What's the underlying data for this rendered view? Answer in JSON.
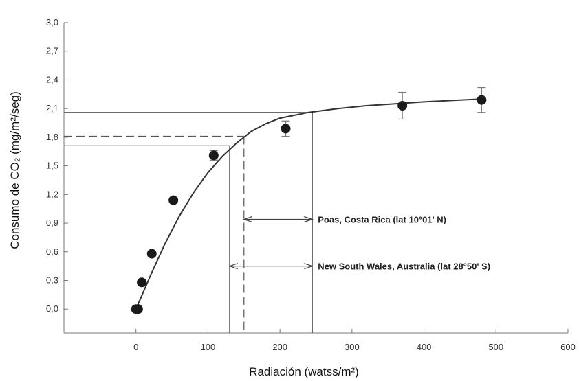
{
  "chart_data": {
    "type": "scatter",
    "xlabel": "Radiación (watss/m²)",
    "ylabel": "Consumo de CO₂ (mg/m²/seg)",
    "xlim": [
      -100,
      600
    ],
    "ylim": [
      -0.25,
      3.0
    ],
    "x_ticks": [
      0,
      100,
      200,
      300,
      400,
      500,
      600
    ],
    "y_ticks": [
      0.0,
      0.3,
      0.6,
      0.9,
      1.2,
      1.5,
      1.8,
      2.1,
      2.4,
      2.7,
      3.0
    ],
    "x_tick_labels": [
      "0",
      "100",
      "200",
      "300",
      "400",
      "500",
      "600"
    ],
    "y_tick_labels": [
      "0,0",
      "0,3",
      "0,6",
      "0,9",
      "1,2",
      "1,5",
      "1,8",
      "2,1",
      "2,4",
      "2,7",
      "3,0"
    ],
    "grid": false,
    "points": [
      {
        "x": 0,
        "y": 0.0
      },
      {
        "x": 3,
        "y": 0.0
      },
      {
        "x": 8,
        "y": 0.28
      },
      {
        "x": 22,
        "y": 0.58
      },
      {
        "x": 52,
        "y": 1.14
      },
      {
        "x": 108,
        "y": 1.61,
        "err": 0.05
      },
      {
        "x": 208,
        "y": 1.89,
        "err": 0.08
      },
      {
        "x": 370,
        "y": 2.13,
        "err": 0.14
      },
      {
        "x": 480,
        "y": 2.19,
        "err": 0.13
      }
    ],
    "fit_curve": [
      {
        "x": 0,
        "y": 0.0
      },
      {
        "x": 20,
        "y": 0.35
      },
      {
        "x": 40,
        "y": 0.68
      },
      {
        "x": 60,
        "y": 0.97
      },
      {
        "x": 80,
        "y": 1.22
      },
      {
        "x": 100,
        "y": 1.43
      },
      {
        "x": 120,
        "y": 1.6
      },
      {
        "x": 140,
        "y": 1.74
      },
      {
        "x": 160,
        "y": 1.86
      },
      {
        "x": 180,
        "y": 1.94
      },
      {
        "x": 200,
        "y": 2.0
      },
      {
        "x": 240,
        "y": 2.06
      },
      {
        "x": 280,
        "y": 2.1
      },
      {
        "x": 320,
        "y": 2.13
      },
      {
        "x": 360,
        "y": 2.15
      },
      {
        "x": 400,
        "y": 2.17
      },
      {
        "x": 440,
        "y": 2.185
      },
      {
        "x": 480,
        "y": 2.2
      }
    ],
    "reference_lines": [
      {
        "style": "solid",
        "y": 2.06,
        "x": 245
      },
      {
        "style": "dashed",
        "y": 1.81,
        "x": 150
      },
      {
        "style": "solid",
        "y": 1.71,
        "x": 130
      }
    ],
    "annotations": [
      {
        "label": "Poas, Costa Rica (lat 10°01' N)",
        "x_from": 150,
        "x_to": 245,
        "y": 0.94
      },
      {
        "label": "New South Wales, Australia (lat 28°50' S)",
        "x_from": 130,
        "x_to": 245,
        "y": 0.45
      }
    ],
    "colors": {
      "marker": "#1a1a1a",
      "line": "#333333",
      "reference": "#555555"
    }
  }
}
